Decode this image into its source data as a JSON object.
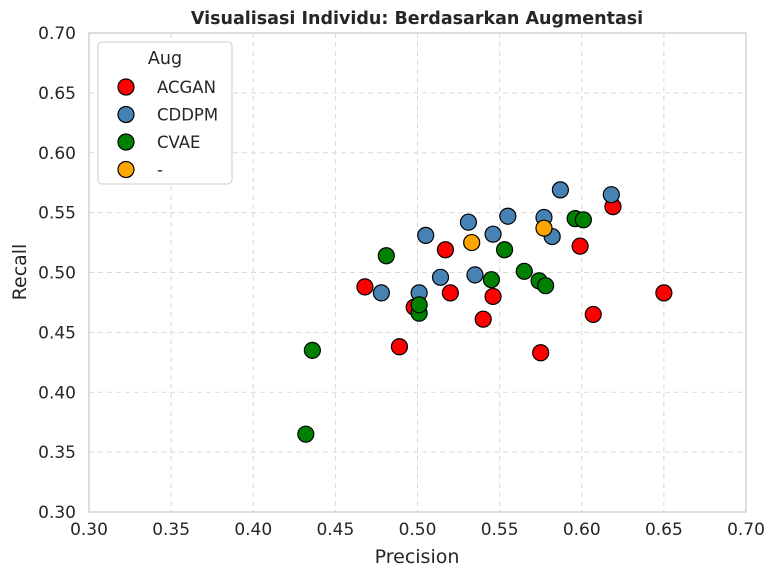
{
  "chart_data": {
    "type": "scatter",
    "title": "Visualisasi Individu: Berdasarkan Augmentasi",
    "xlabel": "Precision",
    "ylabel": "Recall",
    "xlim": [
      0.3,
      0.7
    ],
    "ylim": [
      0.3,
      0.7
    ],
    "xticks": [
      "0.30",
      "0.35",
      "0.40",
      "0.45",
      "0.50",
      "0.55",
      "0.60",
      "0.65",
      "0.70"
    ],
    "yticks": [
      "0.30",
      "0.35",
      "0.40",
      "0.45",
      "0.50",
      "0.55",
      "0.60",
      "0.65",
      "0.70"
    ],
    "grid": true,
    "legend": {
      "title": "Aug",
      "position": "top-left"
    },
    "series": [
      {
        "name": "ACGAN",
        "color": "#ff0000",
        "points": [
          [
            0.468,
            0.488
          ],
          [
            0.489,
            0.438
          ],
          [
            0.498,
            0.471
          ],
          [
            0.517,
            0.519
          ],
          [
            0.52,
            0.483
          ],
          [
            0.54,
            0.461
          ],
          [
            0.546,
            0.48
          ],
          [
            0.575,
            0.433
          ],
          [
            0.599,
            0.522
          ],
          [
            0.607,
            0.465
          ],
          [
            0.619,
            0.555
          ],
          [
            0.65,
            0.483
          ]
        ]
      },
      {
        "name": "CDDPM",
        "color": "#4682b4",
        "points": [
          [
            0.478,
            0.483
          ],
          [
            0.501,
            0.483
          ],
          [
            0.505,
            0.531
          ],
          [
            0.514,
            0.496
          ],
          [
            0.531,
            0.542
          ],
          [
            0.535,
            0.498
          ],
          [
            0.546,
            0.532
          ],
          [
            0.555,
            0.547
          ],
          [
            0.577,
            0.546
          ],
          [
            0.582,
            0.53
          ],
          [
            0.587,
            0.569
          ],
          [
            0.618,
            0.565
          ]
        ]
      },
      {
        "name": "CVAE",
        "color": "#008000",
        "points": [
          [
            0.432,
            0.365
          ],
          [
            0.436,
            0.435
          ],
          [
            0.481,
            0.514
          ],
          [
            0.501,
            0.466
          ],
          [
            0.501,
            0.473
          ],
          [
            0.545,
            0.494
          ],
          [
            0.553,
            0.519
          ],
          [
            0.565,
            0.501
          ],
          [
            0.574,
            0.493
          ],
          [
            0.578,
            0.489
          ],
          [
            0.596,
            0.545
          ],
          [
            0.601,
            0.544
          ]
        ]
      },
      {
        "name": "-",
        "color": "#ffa500",
        "points": [
          [
            0.533,
            0.525
          ],
          [
            0.577,
            0.537
          ]
        ]
      }
    ]
  }
}
